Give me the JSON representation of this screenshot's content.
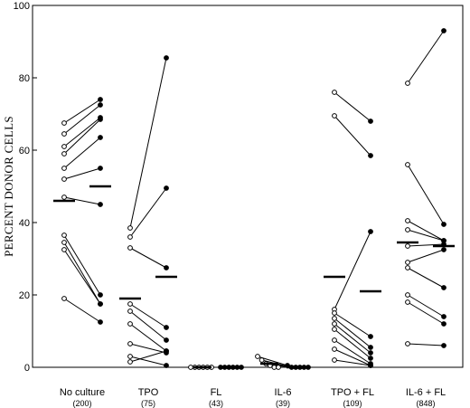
{
  "chart_data": {
    "type": "scatter",
    "ylabel": "PERCENT DONOR CELLS",
    "ylim": [
      0,
      100
    ],
    "yticks": [
      0,
      20,
      40,
      60,
      80,
      100
    ],
    "groups": [
      {
        "label": "No culture",
        "n": "(200)",
        "mean_open": 46,
        "mean_filled": 50,
        "pairs": [
          [
            67.5,
            74
          ],
          [
            64.5,
            72.5
          ],
          [
            61,
            69
          ],
          [
            59,
            68.5
          ],
          [
            55,
            63.5
          ],
          [
            52,
            55
          ],
          [
            47,
            45
          ],
          [
            36.5,
            20
          ],
          [
            34.5,
            17.5
          ],
          [
            32.5,
            17.5
          ],
          [
            19,
            12.5
          ]
        ]
      },
      {
        "label": "TPO",
        "n": "(75)",
        "mean_open": 19,
        "mean_filled": 25,
        "pairs": [
          [
            38.5,
            85.5
          ],
          [
            36,
            49.5
          ],
          [
            33,
            27.5
          ],
          [
            17.5,
            11
          ],
          [
            15.5,
            7.5
          ],
          [
            12,
            4.5
          ],
          [
            6.5,
            4
          ],
          [
            3,
            0.5
          ],
          [
            1.5,
            4.5
          ]
        ]
      },
      {
        "label": "FL",
        "n": "(43)",
        "mean_open": 0,
        "mean_filled": 0,
        "pairs": [
          [
            0,
            0
          ],
          [
            0,
            0
          ],
          [
            0,
            0
          ],
          [
            0,
            0
          ],
          [
            0,
            0
          ],
          [
            0,
            0
          ]
        ]
      },
      {
        "label": "IL-6",
        "n": "(39)",
        "mean_open": 1,
        "mean_filled": 0,
        "pairs": [
          [
            3,
            0.5
          ],
          [
            2,
            0
          ],
          [
            1,
            0
          ],
          [
            0.5,
            0
          ],
          [
            0,
            0
          ],
          [
            0,
            0
          ]
        ]
      },
      {
        "label": "TPO + FL",
        "n": "(109)",
        "mean_open": 25,
        "mean_filled": 21,
        "pairs": [
          [
            76,
            68
          ],
          [
            69.5,
            58.5
          ],
          [
            16,
            37.5
          ],
          [
            15,
            8.5
          ],
          [
            13.5,
            5.5
          ],
          [
            12,
            4
          ],
          [
            10.5,
            2.5
          ],
          [
            7.5,
            1
          ],
          [
            5,
            0.5
          ],
          [
            2,
            0.5
          ]
        ]
      },
      {
        "label": "IL-6 + FL",
        "n": "(848)",
        "mean_open": 34.5,
        "mean_filled": 33.5,
        "pairs": [
          [
            78.5,
            93
          ],
          [
            56,
            39.5
          ],
          [
            40.5,
            35
          ],
          [
            38,
            35
          ],
          [
            33.5,
            34
          ],
          [
            29,
            32.5
          ],
          [
            27.5,
            22
          ],
          [
            20,
            14
          ],
          [
            18,
            12
          ],
          [
            6.5,
            6
          ]
        ]
      }
    ]
  }
}
